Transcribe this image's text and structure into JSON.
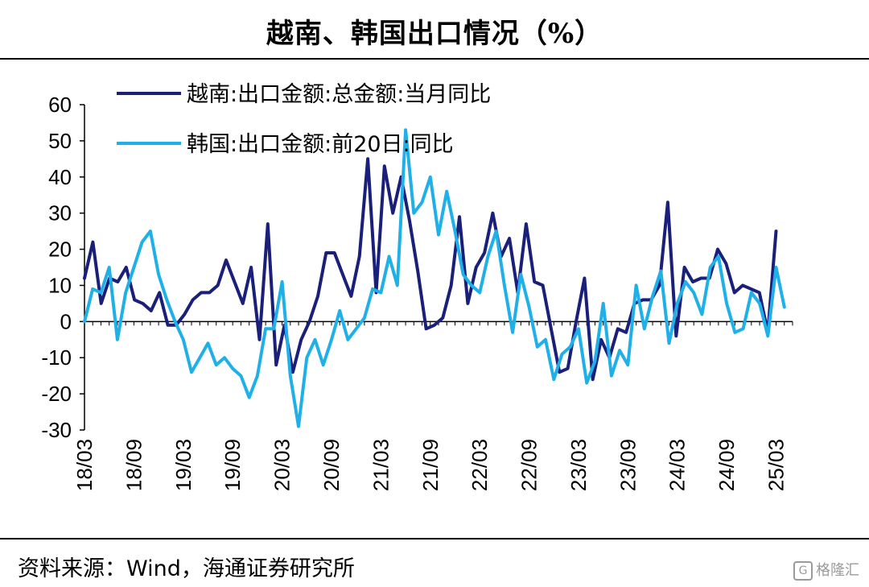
{
  "title": "越南、韩国出口情况（%）",
  "source": "资料来源：Wind，海通证券研究所",
  "watermark": "格隆汇",
  "chart_data": {
    "type": "line",
    "ylim": [
      -30,
      60
    ],
    "yticks": [
      60,
      50,
      40,
      30,
      20,
      10,
      0,
      -10,
      -20,
      -30
    ],
    "xticks": [
      "18/03",
      "18/09",
      "19/03",
      "19/09",
      "20/03",
      "20/09",
      "21/03",
      "21/09",
      "22/03",
      "22/09",
      "23/03",
      "23/09",
      "24/03",
      "24/09",
      "25/03"
    ],
    "x_start": "2018-03",
    "legend_position": "top-left",
    "grid": false,
    "series": [
      {
        "name": "越南:出口金额:总金额:当月同比",
        "color": "#1a1f7a",
        "values": [
          12,
          22,
          5,
          12,
          11,
          15,
          6,
          5,
          3,
          8,
          -1,
          -1,
          2,
          6,
          8,
          8,
          10,
          17,
          11,
          5,
          15,
          -5,
          27,
          -12,
          -1,
          -14,
          -5,
          0,
          7,
          19,
          19,
          13,
          7,
          18,
          45,
          8,
          43,
          30,
          40,
          28,
          14,
          -2,
          -1,
          1,
          10,
          29,
          5,
          15,
          19,
          30,
          18,
          23,
          8,
          27,
          11,
          10,
          -2,
          -14,
          -13,
          0,
          12,
          -16,
          -5,
          -10,
          -2,
          -3,
          5,
          6,
          6,
          10,
          33,
          -4,
          15,
          11,
          12,
          12,
          20,
          16,
          8,
          10,
          9,
          8,
          -3,
          25
        ],
        "end_index": 84
      },
      {
        "name": "韩国:出口金额:前20日:同比",
        "color": "#1fb0e8",
        "values": [
          0,
          9,
          8,
          15,
          -5,
          8,
          15,
          22,
          25,
          13,
          6,
          0,
          -5,
          -14,
          -10,
          -6,
          -12,
          -10,
          -13,
          -15,
          -21,
          -15,
          -2,
          -2,
          11,
          -15,
          -29,
          -10,
          -5,
          -12,
          -5,
          3,
          -5,
          -2,
          1,
          9,
          8,
          18,
          10,
          53,
          30,
          33,
          40,
          24,
          36,
          25,
          13,
          10,
          8,
          18,
          25,
          10,
          -3,
          13,
          4,
          -7,
          -5,
          -16,
          -9,
          -7,
          -2,
          -17,
          -11,
          5,
          -15,
          -8,
          -12,
          10,
          -2,
          7,
          14,
          -6,
          5,
          11,
          8,
          2,
          15,
          18,
          5,
          -3,
          -2,
          8,
          5,
          -4,
          15,
          4
        ],
        "end_index": 85
      }
    ]
  }
}
